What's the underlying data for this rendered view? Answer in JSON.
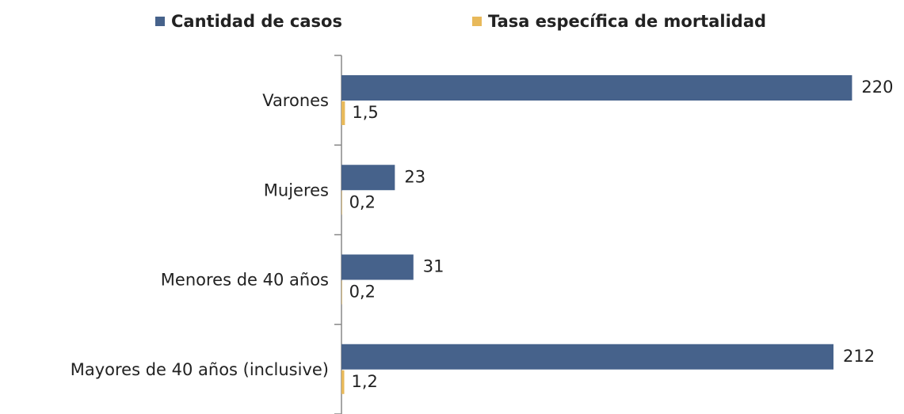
{
  "chart_data": {
    "type": "hbar",
    "categories": [
      "Varones",
      "Mujeres",
      "Menores de 40 años",
      "Mayores de 40 años (inclusive)"
    ],
    "series": [
      {
        "name": "Cantidad de casos",
        "color": "#46628b",
        "values": [
          220,
          23,
          31,
          212
        ]
      },
      {
        "name": "Tasa específica de mortalidad",
        "color": "#e8b95a",
        "values": [
          1.5,
          0.2,
          0.2,
          1.2
        ],
        "value_labels": [
          "1,5",
          "0,2",
          "0,2",
          "1,2"
        ]
      }
    ],
    "xlim": [
      0,
      240
    ],
    "legend": "top"
  }
}
